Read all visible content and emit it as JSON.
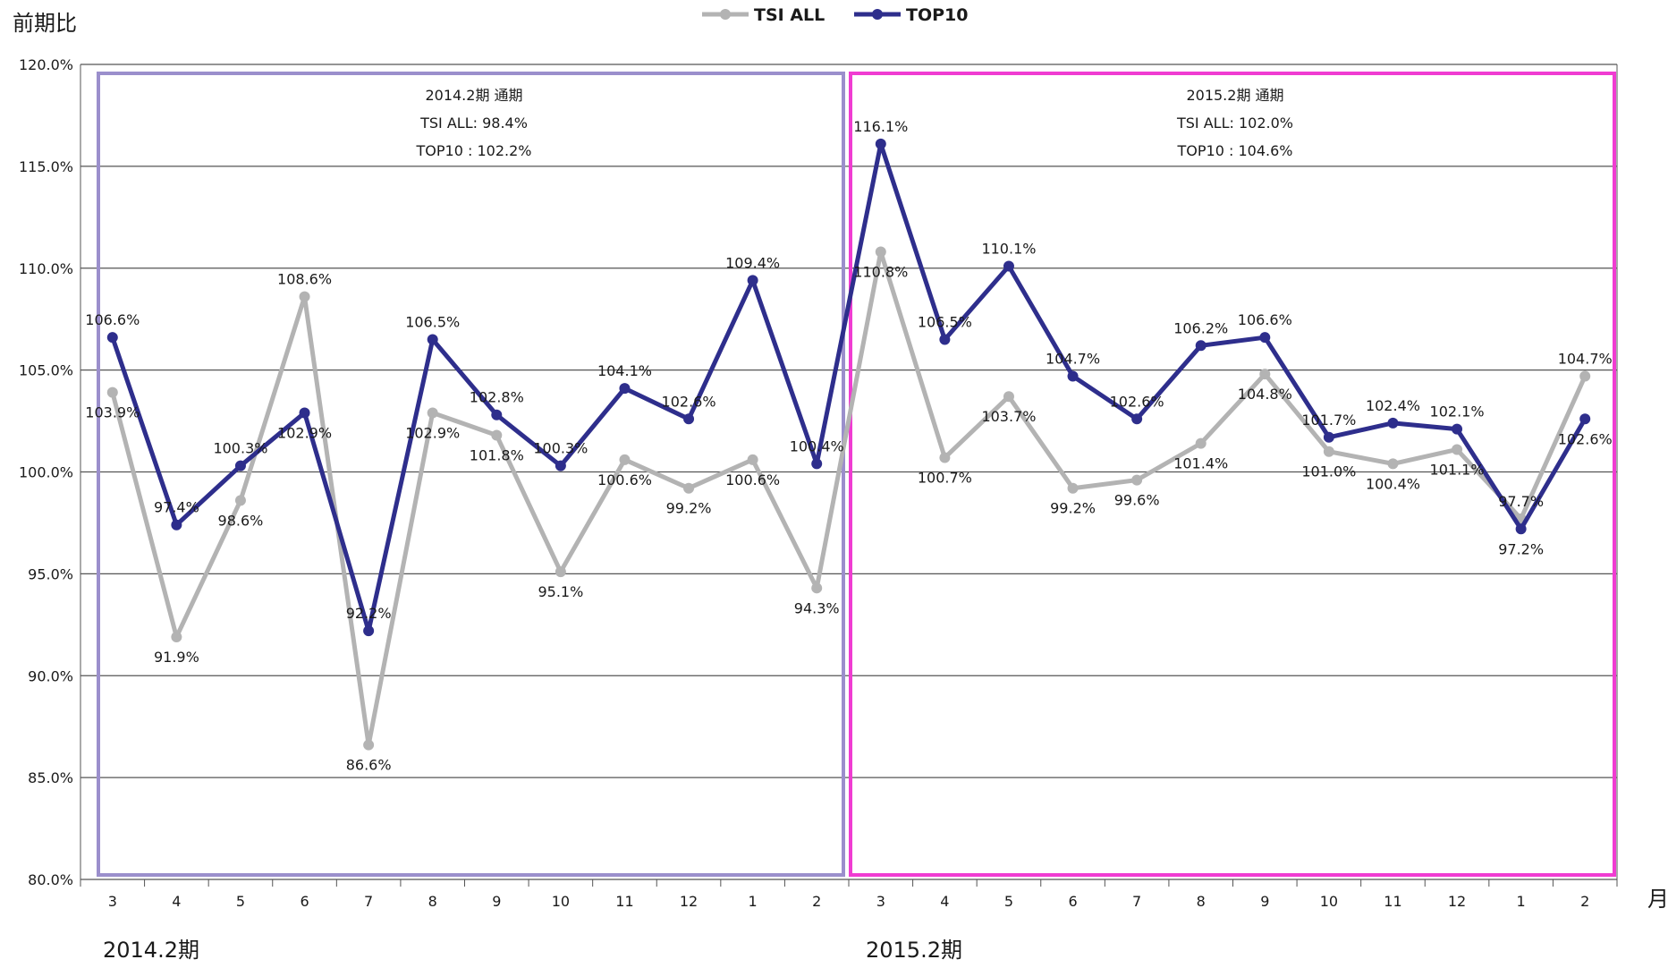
{
  "chart_data": {
    "type": "line",
    "ylabel": "前期比",
    "xlabel": "月",
    "ylim": [
      80,
      120
    ],
    "yticks": [
      "80.0%",
      "85.0%",
      "90.0%",
      "95.0%",
      "100.0%",
      "105.0%",
      "110.0%",
      "115.0%",
      "120.0%"
    ],
    "categories": [
      "3",
      "4",
      "5",
      "6",
      "7",
      "8",
      "9",
      "10",
      "11",
      "12",
      "1",
      "2",
      "3",
      "4",
      "5",
      "6",
      "7",
      "8",
      "9",
      "10",
      "11",
      "12",
      "1",
      "2"
    ],
    "series": [
      {
        "name": "TSI ALL",
        "color": "#b3b3b3",
        "values": [
          103.9,
          91.9,
          98.6,
          108.6,
          86.6,
          102.9,
          101.8,
          95.1,
          100.6,
          99.2,
          100.6,
          94.3,
          110.8,
          100.7,
          103.7,
          99.2,
          99.6,
          101.4,
          104.8,
          101.0,
          100.4,
          101.1,
          97.7,
          104.7
        ]
      },
      {
        "name": "TOP10",
        "color": "#2e2e8c",
        "values": [
          106.6,
          97.4,
          100.3,
          102.9,
          92.2,
          106.5,
          102.8,
          100.3,
          104.1,
          102.6,
          109.4,
          100.4,
          116.1,
          106.5,
          110.1,
          104.7,
          102.6,
          106.2,
          106.6,
          101.7,
          102.4,
          102.1,
          97.2,
          102.6
        ]
      }
    ],
    "grid": true,
    "legend": "top-center",
    "periods": [
      {
        "label": "2014.2期",
        "box_color": "#9b8fcc",
        "note": [
          "2014.2期 通期",
          "TSI ALL: 98.4%",
          "TOP10 : 102.2%"
        ]
      },
      {
        "label": "2015.2期",
        "box_color": "#f03cd2",
        "note": [
          "2015.2期 通期",
          "TSI ALL: 102.0%",
          "TOP10 : 104.6%"
        ]
      }
    ]
  }
}
